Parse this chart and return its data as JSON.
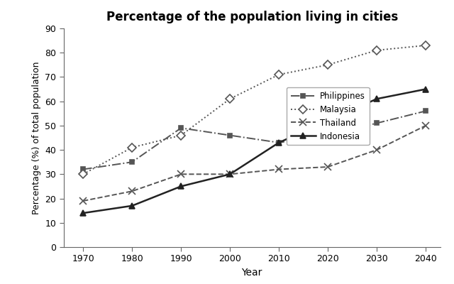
{
  "title": "Percentage of the population living in cities",
  "xlabel": "Year",
  "ylabel": "Percentage (%) of total population",
  "years": [
    1970,
    1980,
    1990,
    2000,
    2010,
    2020,
    2030,
    2040
  ],
  "series": {
    "Philippines": {
      "values": [
        32,
        35,
        49,
        46,
        43,
        46,
        51,
        56
      ],
      "linestyle": "-.",
      "marker": "s",
      "color": "#555555",
      "label": "Philippines",
      "markerfacecolor": "#555555",
      "markeredgecolor": "#555555",
      "markersize": 5,
      "linewidth": 1.4
    },
    "Malaysia": {
      "values": [
        30,
        41,
        46,
        61,
        71,
        75,
        81,
        83
      ],
      "linestyle": ":",
      "marker": "D",
      "color": "#555555",
      "label": "Malaysia",
      "markerfacecolor": "white",
      "markeredgecolor": "#555555",
      "markersize": 6,
      "linewidth": 1.4
    },
    "Thailand": {
      "values": [
        19,
        23,
        30,
        30,
        32,
        33,
        40,
        50
      ],
      "linestyle": "--",
      "marker": "x",
      "color": "#555555",
      "label": "Thailand",
      "markerfacecolor": "#555555",
      "markeredgecolor": "#555555",
      "markersize": 7,
      "linewidth": 1.4
    },
    "Indonesia": {
      "values": [
        14,
        17,
        25,
        30,
        43,
        52,
        61,
        65
      ],
      "linestyle": "-",
      "marker": "^",
      "color": "#222222",
      "label": "Indonesia",
      "markerfacecolor": "#222222",
      "markeredgecolor": "#222222",
      "markersize": 6,
      "linewidth": 1.8
    }
  },
  "ylim": [
    0,
    90
  ],
  "yticks": [
    0,
    10,
    20,
    30,
    40,
    50,
    60,
    70,
    80,
    90
  ],
  "background_color": "#ffffff",
  "figsize": [
    6.4,
    4.0
  ],
  "dpi": 100,
  "legend_order": [
    "Philippines",
    "Malaysia",
    "Thailand",
    "Indonesia"
  ]
}
